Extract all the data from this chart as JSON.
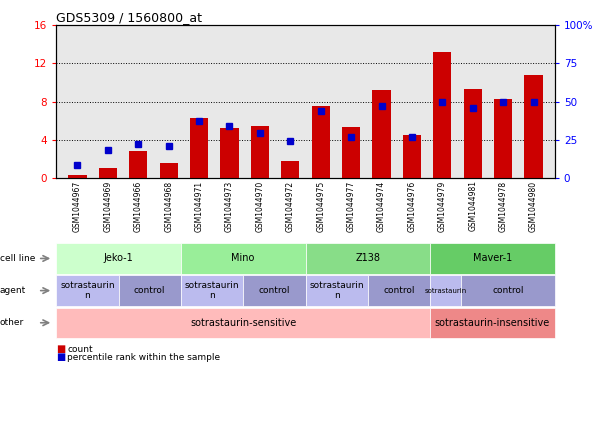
{
  "title": "GDS5309 / 1560800_at",
  "samples": [
    "GSM1044967",
    "GSM1044969",
    "GSM1044966",
    "GSM1044968",
    "GSM1044971",
    "GSM1044973",
    "GSM1044970",
    "GSM1044972",
    "GSM1044975",
    "GSM1044977",
    "GSM1044974",
    "GSM1044976",
    "GSM1044979",
    "GSM1044981",
    "GSM1044978",
    "GSM1044980"
  ],
  "count_values": [
    0.3,
    1.0,
    2.8,
    1.5,
    6.3,
    5.2,
    5.4,
    1.8,
    7.5,
    5.3,
    9.2,
    4.5,
    13.2,
    9.3,
    8.3,
    10.8
  ],
  "percentile_values": [
    8,
    18,
    22,
    21,
    37,
    34,
    29,
    24,
    44,
    27,
    47,
    27,
    50,
    46,
    50,
    50
  ],
  "ylim_left": [
    0,
    16
  ],
  "ylim_right": [
    0,
    100
  ],
  "yticks_left": [
    0,
    4,
    8,
    12,
    16
  ],
  "yticks_right": [
    0,
    25,
    50,
    75,
    100
  ],
  "bar_color": "#cc0000",
  "dot_color": "#0000cc",
  "plot_bg_color": "#e8e8e8",
  "cell_line_groups": [
    {
      "label": "Jeko-1",
      "start": 0,
      "end": 3,
      "color": "#ccffcc"
    },
    {
      "label": "Mino",
      "start": 4,
      "end": 7,
      "color": "#99ee99"
    },
    {
      "label": "Z138",
      "start": 8,
      "end": 11,
      "color": "#88dd88"
    },
    {
      "label": "Maver-1",
      "start": 12,
      "end": 15,
      "color": "#66cc66"
    }
  ],
  "agent_groups": [
    {
      "label": "sotrastaurin\nn",
      "start": 0,
      "end": 1,
      "color": "#bbbbee",
      "small": false
    },
    {
      "label": "control",
      "start": 2,
      "end": 3,
      "color": "#9999cc",
      "small": false
    },
    {
      "label": "sotrastaurin\nn",
      "start": 4,
      "end": 5,
      "color": "#bbbbee",
      "small": false
    },
    {
      "label": "control",
      "start": 6,
      "end": 7,
      "color": "#9999cc",
      "small": false
    },
    {
      "label": "sotrastaurin\nn",
      "start": 8,
      "end": 9,
      "color": "#bbbbee",
      "small": false
    },
    {
      "label": "control",
      "start": 10,
      "end": 11,
      "color": "#9999cc",
      "small": false
    },
    {
      "label": "sotrastaurin",
      "start": 12,
      "end": 12,
      "color": "#bbbbee",
      "small": true
    },
    {
      "label": "control",
      "start": 13,
      "end": 15,
      "color": "#9999cc",
      "small": false
    }
  ],
  "other_groups": [
    {
      "label": "sotrastaurin-sensitive",
      "start": 0,
      "end": 11,
      "color": "#ffbbbb"
    },
    {
      "label": "sotrastaurin-insensitive",
      "start": 12,
      "end": 15,
      "color": "#ee8888"
    }
  ],
  "row_labels": [
    "cell line",
    "agent",
    "other"
  ],
  "legend_items": [
    {
      "color": "#cc0000",
      "label": "count"
    },
    {
      "color": "#0000cc",
      "label": "percentile rank within the sample"
    }
  ]
}
